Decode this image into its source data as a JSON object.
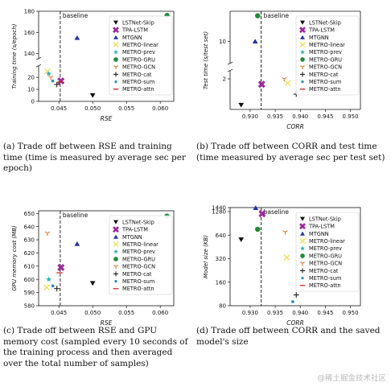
{
  "captions": {
    "a": "(a)  Trade off between RSE and training time (time is measured by average sec per epoch)",
    "b": "(b)  Trade off between CORR and test time (time measured by average sec per test set)",
    "c": "(c)  Trade off between RSE and GPU memory cost (sampled every 10 seconds of the training process and then averaged over the total number of samples)",
    "d": "(d)  Trade off between CORR and the saved model's size"
  },
  "watermark": "@稀土掘金技术社区",
  "legend_entries": [
    {
      "name": "LSTNet-Skip",
      "marker": "triangle-down",
      "color": "#111111"
    },
    {
      "name": "TPA-LSTM",
      "marker": "cross",
      "color": "#9c2a9c"
    },
    {
      "name": "MTGNN",
      "marker": "triangle-up",
      "color": "#2233aa"
    },
    {
      "name": "METRO-linear",
      "marker": "x",
      "color": "#e8e04a"
    },
    {
      "name": "METRO-prev",
      "marker": "star",
      "color": "#2ab3a8"
    },
    {
      "name": "METRO-GRU",
      "marker": "circle",
      "color": "#228b3c"
    },
    {
      "name": "METRO-GCN",
      "marker": "tri-down",
      "color": "#e8823a"
    },
    {
      "name": "METRO-cat",
      "marker": "plus",
      "color": "#222222"
    },
    {
      "name": "METRO-sum",
      "marker": "dot",
      "color": "#2a8fc0"
    },
    {
      "name": "METRO-attn",
      "marker": "hline",
      "color": "#cc2222"
    }
  ],
  "chart_data": [
    {
      "type": "scatter",
      "xlabel": "RSE",
      "ylabel": "Training time (s/epoch)",
      "baseline_label": "baseline",
      "baseline_x": 0.0452,
      "xlim": [
        0.042,
        0.062
      ],
      "xticks": [
        "0.045",
        "0.050",
        "0.055",
        "0.060"
      ],
      "y_broken_axis": true,
      "ylim_lower": [
        0,
        30
      ],
      "yticks_lower": [
        "0",
        "10",
        "20"
      ],
      "ylim_upper": [
        135,
        180
      ],
      "yticks_upper": [
        "140",
        "160",
        "180"
      ],
      "legend_position": "upper-right",
      "points": [
        {
          "series": "LSTNet-Skip",
          "x": 0.05,
          "y": 5
        },
        {
          "series": "TPA-LSTM",
          "x": 0.0453,
          "y": 17
        },
        {
          "series": "MTGNN",
          "x": 0.0477,
          "y": 155
        },
        {
          "series": "METRO-linear",
          "x": 0.0433,
          "y": 25
        },
        {
          "series": "METRO-prev",
          "x": 0.0435,
          "y": 23
        },
        {
          "series": "METRO-GRU",
          "x": 0.061,
          "y": 176
        },
        {
          "series": "METRO-GCN",
          "x": 0.0438,
          "y": 20
        },
        {
          "series": "METRO-cat",
          "x": 0.0447,
          "y": 14
        },
        {
          "series": "METRO-sum",
          "x": 0.0441,
          "y": 17
        },
        {
          "series": "METRO-attn",
          "x": 0.0452,
          "y": 16
        }
      ]
    },
    {
      "type": "scatter",
      "xlabel": "CORR",
      "ylabel": "Test time (s/test set)",
      "baseline_label": "baseline",
      "baseline_x": 0.9322,
      "xlim": [
        0.926,
        0.952
      ],
      "xticks": [
        "0.930",
        "0.935",
        "0.940",
        "0.945",
        "0.950"
      ],
      "y_broken_axis": true,
      "ylim_lower": [
        0.6,
        2.4
      ],
      "yticks_lower": [
        "2"
      ],
      "ylim_upper": [
        8.5,
        12
      ],
      "yticks_upper": [
        "10"
      ],
      "legend_position": "upper-right",
      "points": [
        {
          "series": "LSTNet-Skip",
          "x": 0.9282,
          "y": 0.8
        },
        {
          "series": "TPA-LSTM",
          "x": 0.9323,
          "y": 1.75
        },
        {
          "series": "MTGNN",
          "x": 0.931,
          "y": 10.0
        },
        {
          "series": "METRO-linear",
          "x": 0.9375,
          "y": 1.8
        },
        {
          "series": "METRO-prev",
          "x": 0.9402,
          "y": 1.95
        },
        {
          "series": "METRO-GRU",
          "x": 0.9315,
          "y": 11.7
        },
        {
          "series": "METRO-GCN",
          "x": 0.9368,
          "y": 2.0
        },
        {
          "series": "METRO-cat",
          "x": 0.9392,
          "y": 1.3
        },
        {
          "series": "METRO-sum",
          "x": 0.9418,
          "y": 1.5
        },
        {
          "series": "METRO-attn",
          "x": 0.94,
          "y": 1.4
        }
      ]
    },
    {
      "type": "scatter",
      "xlabel": "RSE",
      "ylabel": "GPU memory cost (MB)",
      "baseline_label": "baseline",
      "baseline_x": 0.0452,
      "xlim": [
        0.042,
        0.062
      ],
      "xticks": [
        "0.045",
        "0.050",
        "0.055",
        "0.060"
      ],
      "ylim": [
        580,
        652
      ],
      "yticks": [
        "580",
        "590",
        "600",
        "610",
        "620",
        "630",
        "640",
        "650"
      ],
      "legend_position": "upper-right",
      "points": [
        {
          "series": "LSTNet-Skip",
          "x": 0.05,
          "y": 597
        },
        {
          "series": "TPA-LSTM",
          "x": 0.0453,
          "y": 609
        },
        {
          "series": "MTGNN",
          "x": 0.0477,
          "y": 627
        },
        {
          "series": "METRO-linear",
          "x": 0.0432,
          "y": 594
        },
        {
          "series": "METRO-prev",
          "x": 0.0435,
          "y": 600
        },
        {
          "series": "METRO-GRU",
          "x": 0.061,
          "y": 648
        },
        {
          "series": "METRO-GCN",
          "x": 0.0433,
          "y": 635
        },
        {
          "series": "METRO-cat",
          "x": 0.0447,
          "y": 593
        },
        {
          "series": "METRO-sum",
          "x": 0.0441,
          "y": 595
        },
        {
          "series": "METRO-attn",
          "x": 0.0451,
          "y": 605
        }
      ]
    },
    {
      "type": "scatter",
      "xlabel": "CORR",
      "ylabel": "Model size (KB)",
      "baseline_label": "baseline",
      "baseline_x": 0.9322,
      "xlim": [
        0.926,
        0.952
      ],
      "xticks": [
        "0.930",
        "0.935",
        "0.940",
        "0.945",
        "0.950"
      ],
      "ylim": [
        80,
        1440
      ],
      "yticks": [
        "80",
        "160",
        "320",
        "640",
        "1280",
        "1440"
      ],
      "legend_position": "upper-right",
      "points": [
        {
          "series": "LSTNet-Skip",
          "x": 0.9282,
          "y": 560
        },
        {
          "series": "TPA-LSTM",
          "x": 0.9324,
          "y": 1200
        },
        {
          "series": "MTGNN",
          "x": 0.9311,
          "y": 1430
        },
        {
          "series": "METRO-linear",
          "x": 0.9373,
          "y": 330
        },
        {
          "series": "METRO-prev",
          "x": 0.9402,
          "y": 300
        },
        {
          "series": "METRO-GRU",
          "x": 0.9315,
          "y": 760
        },
        {
          "series": "METRO-GCN",
          "x": 0.937,
          "y": 700
        },
        {
          "series": "METRO-cat",
          "x": 0.9392,
          "y": 110
        },
        {
          "series": "METRO-sum",
          "x": 0.9385,
          "y": 90
        },
        {
          "series": "METRO-attn",
          "x": 0.9402,
          "y": 320
        }
      ]
    }
  ]
}
